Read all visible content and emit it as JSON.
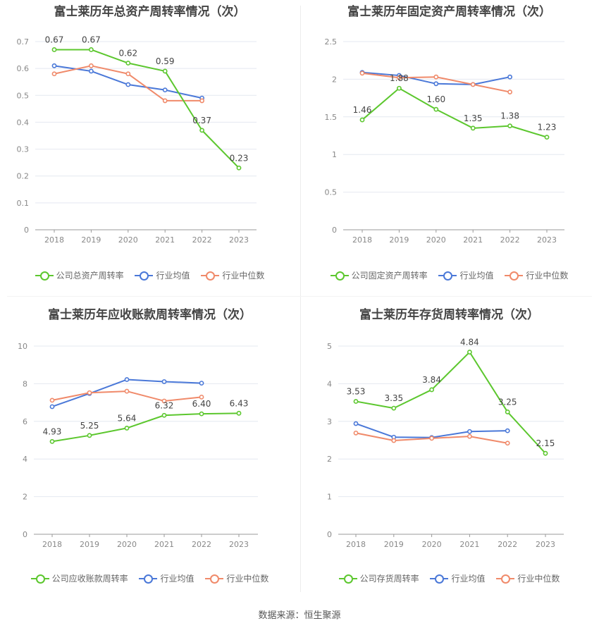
{
  "colors": {
    "company": "#5cc72e",
    "mean": "#4a78d8",
    "median": "#f08a6a",
    "grid": "#e4e8f0",
    "axis": "#999999",
    "tick": "#888888",
    "label": "#444444"
  },
  "legend": {
    "mean": "行业均值",
    "median": "行业中位数"
  },
  "source": "数据来源：恒生聚源",
  "chart_data": [
    {
      "type": "line",
      "title": "富士莱历年总资产周转率情况（次）",
      "categories": [
        "2018",
        "2019",
        "2020",
        "2021",
        "2022",
        "2023"
      ],
      "ylim": [
        0,
        0.7
      ],
      "yticks": [
        "0",
        "0.1",
        "0.2",
        "0.3",
        "0.4",
        "0.5",
        "0.6",
        "0.7"
      ],
      "series": [
        {
          "name": "公司总资产周转率",
          "role": "company",
          "values": [
            0.67,
            0.67,
            0.62,
            0.59,
            0.37,
            0.23
          ],
          "labels": [
            "0.67",
            "0.67",
            "0.62",
            "0.59",
            "0.37",
            "0.23"
          ]
        },
        {
          "name": "行业均值",
          "role": "mean",
          "values": [
            0.61,
            0.59,
            0.54,
            0.52,
            0.49,
            null
          ]
        },
        {
          "name": "行业中位数",
          "role": "median",
          "values": [
            0.58,
            0.61,
            0.58,
            0.48,
            0.48,
            null
          ]
        }
      ],
      "grid": true,
      "legend_position": "bottom"
    },
    {
      "type": "line",
      "title": "富士莱历年固定资产周转率情况（次）",
      "categories": [
        "2018",
        "2019",
        "2020",
        "2021",
        "2022",
        "2023"
      ],
      "ylim": [
        0,
        2.5
      ],
      "yticks": [
        "0",
        "0.5",
        "1",
        "1.5",
        "2",
        "2.5"
      ],
      "series": [
        {
          "name": "公司固定资产周转率",
          "role": "company",
          "values": [
            1.46,
            1.88,
            1.6,
            1.35,
            1.38,
            1.23
          ],
          "labels": [
            "1.46",
            "1.88",
            "1.60",
            "1.35",
            "1.38",
            "1.23"
          ]
        },
        {
          "name": "行业均值",
          "role": "mean",
          "values": [
            2.09,
            2.05,
            1.94,
            1.93,
            2.03,
            null
          ]
        },
        {
          "name": "行业中位数",
          "role": "median",
          "values": [
            2.08,
            2.02,
            2.03,
            1.93,
            1.83,
            null
          ]
        }
      ],
      "grid": true,
      "legend_position": "bottom"
    },
    {
      "type": "line",
      "title": "富士莱历年应收账款周转率情况（次）",
      "categories": [
        "2018",
        "2019",
        "2020",
        "2021",
        "2022",
        "2023"
      ],
      "ylim": [
        0,
        10
      ],
      "yticks": [
        "0",
        "2",
        "4",
        "6",
        "8",
        "10"
      ],
      "series": [
        {
          "name": "公司应收账款周转率",
          "role": "company",
          "values": [
            4.93,
            5.25,
            5.64,
            6.32,
            6.4,
            6.43
          ],
          "labels": [
            "4.93",
            "5.25",
            "5.64",
            "6.32",
            "6.40",
            "6.43"
          ]
        },
        {
          "name": "行业均值",
          "role": "mean",
          "values": [
            6.78,
            7.48,
            8.22,
            8.11,
            8.03,
            null
          ]
        },
        {
          "name": "行业中位数",
          "role": "median",
          "values": [
            7.12,
            7.52,
            7.6,
            7.08,
            7.29,
            null
          ]
        }
      ],
      "grid": true,
      "legend_position": "bottom"
    },
    {
      "type": "line",
      "title": "富士莱历年存货周转率情况（次）",
      "categories": [
        "2018",
        "2019",
        "2020",
        "2021",
        "2022",
        "2023"
      ],
      "ylim": [
        0,
        5
      ],
      "yticks": [
        "0",
        "1",
        "2",
        "3",
        "4",
        "5"
      ],
      "series": [
        {
          "name": "公司存货周转率",
          "role": "company",
          "values": [
            3.53,
            3.35,
            3.84,
            4.84,
            3.25,
            2.15
          ],
          "labels": [
            "3.53",
            "3.35",
            "3.84",
            "4.84",
            "3.25",
            "2.15"
          ]
        },
        {
          "name": "行业均值",
          "role": "mean",
          "values": [
            2.94,
            2.58,
            2.57,
            2.73,
            2.75,
            null
          ]
        },
        {
          "name": "行业中位数",
          "role": "median",
          "values": [
            2.69,
            2.49,
            2.55,
            2.6,
            2.42,
            null
          ]
        }
      ],
      "grid": true,
      "legend_position": "bottom"
    }
  ]
}
